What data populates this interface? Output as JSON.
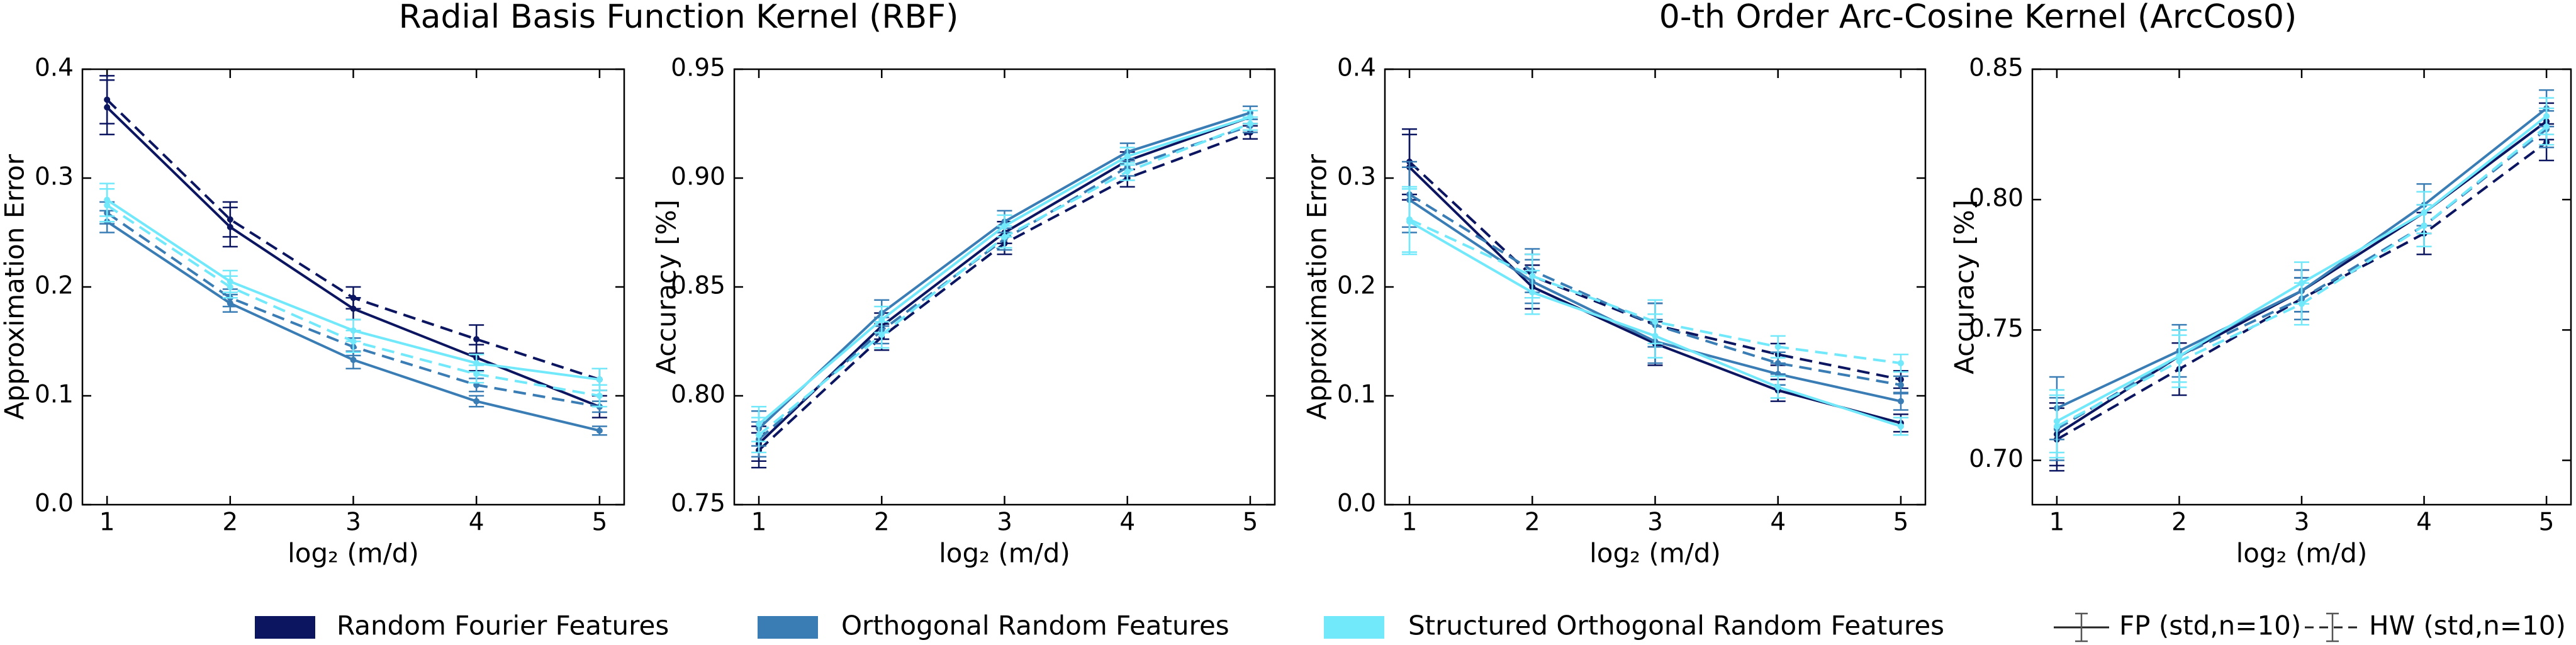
{
  "titles": [
    "Radial Basis Function Kernel (RBF)",
    "0-th Order Arc-Cosine Kernel (ArcCos0)"
  ],
  "legend": {
    "colors": [
      {
        "name": "Random Fourier Features",
        "color": "#0b1560"
      },
      {
        "name": "Orthogonal Random Features",
        "color": "#3a7db5"
      },
      {
        "name": "Structured Orthogonal Random Features",
        "color": "#72e8fb"
      }
    ],
    "styles": [
      {
        "name": "FP (std,n=10)",
        "dashed": false
      },
      {
        "name": "HW (std,n=10)",
        "dashed": true
      }
    ]
  },
  "chart_data": [
    {
      "type": "line",
      "xlabel": "log₂ (m/d)",
      "ylabel": "Approximation Error",
      "x": [
        1,
        2,
        3,
        4,
        5
      ],
      "xlim": [
        0.8,
        5.2
      ],
      "xticks": [
        1,
        2,
        3,
        4,
        5
      ],
      "ylim": [
        0,
        0.4
      ],
      "yticks": [
        {
          "value": 0,
          "label": "0.0"
        },
        0.1,
        0.2,
        0.3,
        0.4
      ],
      "series": [
        {
          "color": "#0b1560",
          "dashed": false,
          "values": [
            0.365,
            0.255,
            0.18,
            0.135,
            0.09
          ],
          "errors": [
            0.025,
            0.018,
            0.01,
            0.012,
            0.01
          ]
        },
        {
          "color": "#0b1560",
          "dashed": true,
          "values": [
            0.372,
            0.262,
            0.19,
            0.152,
            0.115
          ],
          "errors": [
            0.022,
            0.016,
            0.01,
            0.013,
            0.01
          ]
        },
        {
          "color": "#3a7db5",
          "dashed": false,
          "values": [
            0.26,
            0.185,
            0.133,
            0.095,
            0.068
          ],
          "errors": [
            0.01,
            0.008,
            0.008,
            0.005,
            0.004
          ]
        },
        {
          "color": "#3a7db5",
          "dashed": true,
          "values": [
            0.268,
            0.19,
            0.145,
            0.11,
            0.09
          ],
          "errors": [
            0.01,
            0.008,
            0.008,
            0.006,
            0.005
          ]
        },
        {
          "color": "#72e8fb",
          "dashed": false,
          "values": [
            0.28,
            0.205,
            0.16,
            0.13,
            0.115
          ],
          "errors": [
            0.015,
            0.01,
            0.01,
            0.008,
            0.01
          ]
        },
        {
          "color": "#72e8fb",
          "dashed": true,
          "values": [
            0.275,
            0.2,
            0.15,
            0.12,
            0.1
          ],
          "errors": [
            0.015,
            0.01,
            0.01,
            0.008,
            0.01
          ]
        }
      ]
    },
    {
      "type": "line",
      "xlabel": "log₂ (m/d)",
      "ylabel": "Accuracy [%]",
      "x": [
        1,
        2,
        3,
        4,
        5
      ],
      "xlim": [
        0.8,
        5.2
      ],
      "xticks": [
        1,
        2,
        3,
        4,
        5
      ],
      "ylim": [
        0.75,
        0.95
      ],
      "yticks": [
        0.75,
        {
          "value": 0.8,
          "label": "0.80"
        },
        0.85,
        {
          "value": 0.9,
          "label": "0.90"
        },
        0.95
      ],
      "series": [
        {
          "color": "#0b1560",
          "dashed": false,
          "values": [
            0.778,
            0.832,
            0.875,
            0.908,
            0.928
          ],
          "errors": [
            0.008,
            0.006,
            0.005,
            0.004,
            0.003
          ]
        },
        {
          "color": "#0b1560",
          "dashed": true,
          "values": [
            0.775,
            0.827,
            0.87,
            0.9,
            0.921
          ],
          "errors": [
            0.008,
            0.006,
            0.005,
            0.004,
            0.003
          ]
        },
        {
          "color": "#3a7db5",
          "dashed": false,
          "values": [
            0.785,
            0.838,
            0.88,
            0.912,
            0.93
          ],
          "errors": [
            0.008,
            0.006,
            0.005,
            0.004,
            0.003
          ]
        },
        {
          "color": "#3a7db5",
          "dashed": true,
          "values": [
            0.78,
            0.83,
            0.872,
            0.905,
            0.924
          ],
          "errors": [
            0.008,
            0.006,
            0.005,
            0.004,
            0.003
          ]
        },
        {
          "color": "#72e8fb",
          "dashed": false,
          "values": [
            0.787,
            0.835,
            0.878,
            0.91,
            0.928
          ],
          "errors": [
            0.008,
            0.006,
            0.005,
            0.004,
            0.003
          ]
        },
        {
          "color": "#72e8fb",
          "dashed": true,
          "values": [
            0.782,
            0.828,
            0.873,
            0.903,
            0.925
          ],
          "errors": [
            0.008,
            0.006,
            0.005,
            0.004,
            0.003
          ]
        }
      ]
    },
    {
      "type": "line",
      "xlabel": "log₂ (m/d)",
      "ylabel": "Approximation Error",
      "x": [
        1,
        2,
        3,
        4,
        5
      ],
      "xlim": [
        0.8,
        5.2
      ],
      "xticks": [
        1,
        2,
        3,
        4,
        5
      ],
      "ylim": [
        0,
        0.4
      ],
      "yticks": [
        {
          "value": 0,
          "label": "0.0"
        },
        0.1,
        0.2,
        0.3,
        0.4
      ],
      "series": [
        {
          "color": "#0b1560",
          "dashed": false,
          "values": [
            0.31,
            0.2,
            0.148,
            0.105,
            0.075
          ],
          "errors": [
            0.03,
            0.02,
            0.02,
            0.01,
            0.008
          ]
        },
        {
          "color": "#0b1560",
          "dashed": true,
          "values": [
            0.315,
            0.21,
            0.165,
            0.138,
            0.115
          ],
          "errors": [
            0.03,
            0.02,
            0.02,
            0.01,
            0.008
          ]
        },
        {
          "color": "#3a7db5",
          "dashed": false,
          "values": [
            0.28,
            0.205,
            0.15,
            0.12,
            0.095
          ],
          "errors": [
            0.03,
            0.02,
            0.02,
            0.01,
            0.008
          ]
        },
        {
          "color": "#3a7db5",
          "dashed": true,
          "values": [
            0.285,
            0.215,
            0.165,
            0.13,
            0.11
          ],
          "errors": [
            0.03,
            0.02,
            0.02,
            0.01,
            0.008
          ]
        },
        {
          "color": "#72e8fb",
          "dashed": false,
          "values": [
            0.26,
            0.195,
            0.155,
            0.108,
            0.072
          ],
          "errors": [
            0.03,
            0.02,
            0.02,
            0.01,
            0.008
          ]
        },
        {
          "color": "#72e8fb",
          "dashed": true,
          "values": [
            0.262,
            0.21,
            0.168,
            0.145,
            0.13
          ],
          "errors": [
            0.03,
            0.02,
            0.02,
            0.01,
            0.008
          ]
        }
      ]
    },
    {
      "type": "line",
      "xlabel": "log₂ (m/d)",
      "ylabel": "Accuracy [%]",
      "x": [
        1,
        2,
        3,
        4,
        5
      ],
      "xlim": [
        0.8,
        5.2
      ],
      "xticks": [
        1,
        2,
        3,
        4,
        5
      ],
      "ylim": [
        0.683,
        0.85
      ],
      "yticks": [
        {
          "value": 0.7,
          "label": "0.70"
        },
        0.75,
        {
          "value": 0.8,
          "label": "0.80"
        },
        0.85
      ],
      "series": [
        {
          "color": "#0b1560",
          "dashed": false,
          "values": [
            0.71,
            0.74,
            0.765,
            0.795,
            0.83
          ],
          "errors": [
            0.012,
            0.01,
            0.008,
            0.008,
            0.007
          ]
        },
        {
          "color": "#0b1560",
          "dashed": true,
          "values": [
            0.708,
            0.735,
            0.762,
            0.787,
            0.822
          ],
          "errors": [
            0.012,
            0.01,
            0.008,
            0.008,
            0.007
          ]
        },
        {
          "color": "#3a7db5",
          "dashed": false,
          "values": [
            0.72,
            0.742,
            0.765,
            0.798,
            0.835
          ],
          "errors": [
            0.012,
            0.01,
            0.008,
            0.008,
            0.007
          ]
        },
        {
          "color": "#3a7db5",
          "dashed": true,
          "values": [
            0.712,
            0.74,
            0.762,
            0.79,
            0.827
          ],
          "errors": [
            0.012,
            0.01,
            0.008,
            0.008,
            0.007
          ]
        },
        {
          "color": "#72e8fb",
          "dashed": false,
          "values": [
            0.715,
            0.74,
            0.768,
            0.795,
            0.832
          ],
          "errors": [
            0.012,
            0.01,
            0.008,
            0.008,
            0.007
          ]
        },
        {
          "color": "#72e8fb",
          "dashed": true,
          "values": [
            0.713,
            0.738,
            0.76,
            0.79,
            0.828
          ],
          "errors": [
            0.012,
            0.01,
            0.008,
            0.008,
            0.007
          ]
        }
      ]
    }
  ]
}
